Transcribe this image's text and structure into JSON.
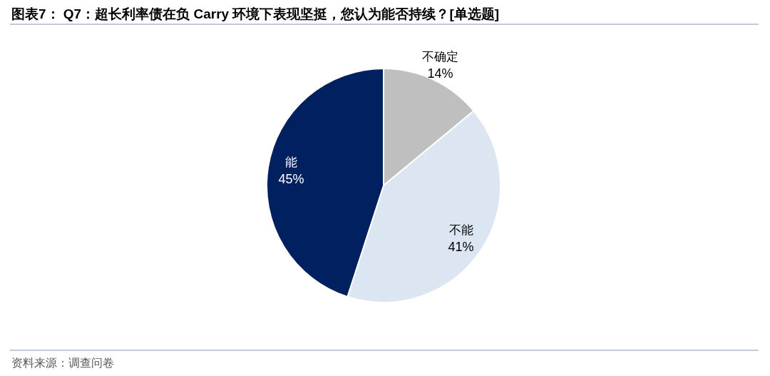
{
  "chart_data": {
    "type": "pie",
    "title": "图表7： Q7：超长利率债在负 Carry 环境下表现坚挺，您认为能否持续？[单选题]",
    "categories": [
      "不确定",
      "不能",
      "能"
    ],
    "values": [
      14,
      41,
      45
    ],
    "value_labels": [
      "14%",
      "41%",
      "45%"
    ],
    "colors": [
      "#bfbfbf",
      "#dce6f2",
      "#002060"
    ],
    "annotations": [
      "资料来源：调查问卷"
    ]
  }
}
